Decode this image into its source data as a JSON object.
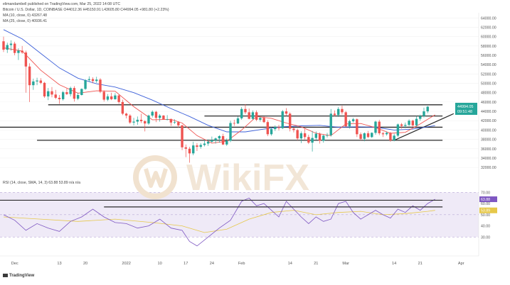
{
  "header": {
    "publisher_line": "elimandambell published on TradingView.com, Mar 25, 2022 14:08 UTC",
    "symbol_line": "Bitcoin / U.S. Dollar, 1D, COINBASE  O44012.36  H45150.91  L43605.80  C44994.05  +981.80 (+2.23%)",
    "ma10_line": "MA (10, close, 0)  43267.48",
    "ma25_line": "MA (25, close, 0)  40936.41",
    "rsi_line": "RSI (14, close, SMA, 14, 3)  63.88  53.89  n/a  n/a"
  },
  "price_badge": {
    "price": "44994.05",
    "countdown": "09:51:48"
  },
  "watermark": "WikiFX",
  "footer": {
    "brand": "TradingView"
  },
  "colors": {
    "up": "#26a69a",
    "down": "#ef5350",
    "ma10": "#ef5350",
    "ma25": "#3b5fd9",
    "rsi": "#7e57c2",
    "rsi_ma": "#e6c84a",
    "levels": "#2b2b2b",
    "band": "#efeaf7"
  },
  "chart_data": [
    {
      "type": "candlestick",
      "title": "Bitcoin / U.S. Dollar, 1D, COINBASE",
      "price_axis_ticks": [
        "64000.00",
        "62000.00",
        "60000.00",
        "58000.00",
        "56000.00",
        "54000.00",
        "52000.00",
        "50000.00",
        "48000.00",
        "46000.00",
        "44000.00",
        "42000.00",
        "40000.00",
        "38000.00",
        "36000.00",
        "34000.00",
        "32000.00"
      ],
      "ylim": [
        30500,
        64500
      ],
      "x_tick_labels": [
        {
          "day": 3,
          "label": "Dec"
        },
        {
          "day": 15,
          "label": "13"
        },
        {
          "day": 22,
          "label": "20"
        },
        {
          "day": 33,
          "label": "2022"
        },
        {
          "day": 42,
          "label": "10"
        },
        {
          "day": 49,
          "label": "17"
        },
        {
          "day": 56,
          "label": "24"
        },
        {
          "day": 64,
          "label": "Feb"
        },
        {
          "day": 77,
          "label": "14"
        },
        {
          "day": 84,
          "label": "21"
        },
        {
          "day": 92,
          "label": "Mar"
        },
        {
          "day": 105,
          "label": "14"
        },
        {
          "day": 112,
          "label": "21"
        },
        {
          "day": 123,
          "label": "Apr"
        }
      ],
      "candles": [
        [
          59000,
          60000,
          56700,
          57200
        ],
        [
          57200,
          58700,
          56500,
          58200
        ],
        [
          58200,
          59200,
          57000,
          58500
        ],
        [
          58500,
          58900,
          56000,
          56500
        ],
        [
          56500,
          57500,
          55000,
          57000
        ],
        [
          57000,
          58000,
          56300,
          56600
        ],
        [
          56600,
          57000,
          48000,
          53600
        ],
        [
          53600,
          54300,
          46000,
          49600
        ],
        [
          49600,
          51000,
          48600,
          50400
        ],
        [
          50400,
          51200,
          49600,
          50600
        ],
        [
          50600,
          51100,
          49800,
          50100
        ],
        [
          50100,
          50300,
          46900,
          47200
        ],
        [
          47200,
          49000,
          46400,
          48300
        ],
        [
          48300,
          49200,
          47000,
          47600
        ],
        [
          47600,
          48600,
          46600,
          46900
        ],
        [
          46900,
          47500,
          45600,
          46600
        ],
        [
          46600,
          48400,
          46300,
          48100
        ],
        [
          48100,
          48900,
          47500,
          47700
        ],
        [
          47700,
          49300,
          47200,
          49000
        ],
        [
          49000,
          49400,
          46100,
          46700
        ],
        [
          46700,
          48000,
          46400,
          47500
        ],
        [
          47500,
          48900,
          47400,
          48800
        ],
        [
          48800,
          50900,
          48600,
          50700
        ],
        [
          50700,
          51500,
          50300,
          50900
        ],
        [
          50900,
          51300,
          50000,
          50500
        ],
        [
          50500,
          51400,
          50100,
          50800
        ],
        [
          50800,
          51100,
          47900,
          48200
        ],
        [
          48200,
          48500,
          46100,
          46500
        ],
        [
          46500,
          47700,
          46200,
          47200
        ],
        [
          47200,
          48000,
          46400,
          46600
        ],
        [
          46600,
          47900,
          46500,
          47400
        ],
        [
          47400,
          47600,
          45600,
          46000
        ],
        [
          46000,
          46500,
          43200,
          43500
        ],
        [
          43500,
          43700,
          42500,
          43100
        ],
        [
          43100,
          43400,
          41300,
          41600
        ],
        [
          41600,
          42600,
          41000,
          41800
        ],
        [
          41800,
          42900,
          41100,
          42200
        ],
        [
          42200,
          43500,
          41500,
          41900
        ],
        [
          41900,
          42100,
          39700,
          41400
        ],
        [
          41400,
          43300,
          41100,
          43100
        ],
        [
          43100,
          44200,
          42700,
          43900
        ],
        [
          43900,
          44100,
          41700,
          42600
        ],
        [
          42600,
          43400,
          41800,
          43100
        ],
        [
          43100,
          43200,
          42200,
          42300
        ],
        [
          42300,
          43200,
          42100,
          42300
        ],
        [
          42300,
          42500,
          40900,
          41600
        ],
        [
          41600,
          42300,
          41300,
          41700
        ],
        [
          41700,
          41900,
          40500,
          41000
        ],
        [
          41000,
          41100,
          35700,
          36300
        ],
        [
          36300,
          36900,
          34200,
          36000
        ],
        [
          36000,
          36400,
          33000,
          35000
        ],
        [
          35000,
          37500,
          34600,
          36700
        ],
        [
          36700,
          37200,
          35500,
          36400
        ],
        [
          36400,
          37200,
          36000,
          36800
        ],
        [
          36800,
          37900,
          36500,
          37100
        ],
        [
          37100,
          38000,
          36600,
          37500
        ],
        [
          37500,
          38600,
          37300,
          37800
        ],
        [
          37800,
          38400,
          37100,
          38200
        ],
        [
          38200,
          38900,
          37300,
          38700
        ],
        [
          38700,
          39200,
          36800,
          36900
        ],
        [
          36900,
          38200,
          36600,
          37700
        ],
        [
          37700,
          42000,
          37400,
          41500
        ],
        [
          41500,
          42200,
          40900,
          41400
        ],
        [
          41400,
          42900,
          41300,
          42500
        ],
        [
          42500,
          44900,
          42200,
          44500
        ],
        [
          44500,
          45500,
          43400,
          43800
        ],
        [
          43800,
          44600,
          42300,
          42400
        ],
        [
          42400,
          44200,
          42200,
          43800
        ],
        [
          43800,
          44200,
          41900,
          42200
        ],
        [
          42200,
          42800,
          41800,
          42600
        ],
        [
          42600,
          42900,
          41500,
          41700
        ],
        [
          41700,
          42100,
          38700,
          39100
        ],
        [
          39100,
          40600,
          38800,
          40200
        ],
        [
          40200,
          41000,
          39800,
          40600
        ],
        [
          40600,
          41100,
          39900,
          40400
        ],
        [
          40400,
          44300,
          40200,
          44000
        ],
        [
          44000,
          44700,
          43000,
          43500
        ],
        [
          43500,
          43800,
          39700,
          40300
        ],
        [
          40300,
          40500,
          39500,
          40000
        ],
        [
          40000,
          40300,
          37800,
          38200
        ],
        [
          38200,
          39700,
          37200,
          39300
        ],
        [
          39300,
          40300,
          38000,
          38500
        ],
        [
          38500,
          39000,
          37000,
          37300
        ],
        [
          37300,
          39800,
          35400,
          38300
        ],
        [
          38300,
          39700,
          37900,
          39200
        ],
        [
          39200,
          39500,
          37100,
          37700
        ],
        [
          37700,
          39000,
          37300,
          38800
        ],
        [
          38800,
          39400,
          38400,
          38900
        ],
        [
          38900,
          44500,
          38600,
          43500
        ],
        [
          43500,
          44200,
          43000,
          43200
        ],
        [
          43200,
          44900,
          42800,
          44500
        ],
        [
          44500,
          45200,
          43300,
          43800
        ],
        [
          43800,
          44100,
          40600,
          40800
        ],
        [
          40800,
          42200,
          40300,
          41900
        ],
        [
          41900,
          42600,
          41600,
          42300
        ],
        [
          42300,
          42500,
          38500,
          39100
        ],
        [
          39100,
          39500,
          37800,
          38100
        ],
        [
          38100,
          39500,
          37600,
          39300
        ],
        [
          39300,
          39800,
          38300,
          38500
        ],
        [
          38500,
          39500,
          38300,
          39400
        ],
        [
          39400,
          42000,
          39000,
          41800
        ],
        [
          41800,
          42200,
          38900,
          39300
        ],
        [
          39300,
          39600,
          38500,
          39100
        ],
        [
          39100,
          39700,
          38800,
          39400
        ],
        [
          39400,
          39600,
          37500,
          37800
        ],
        [
          37800,
          39200,
          37600,
          38800
        ],
        [
          38800,
          41400,
          38500,
          41200
        ],
        [
          41200,
          41500,
          40300,
          40900
        ],
        [
          40900,
          41600,
          40400,
          41100
        ],
        [
          41100,
          42300,
          40800,
          42000
        ],
        [
          42000,
          42200,
          40600,
          41000
        ],
        [
          41000,
          43000,
          40800,
          42400
        ],
        [
          42400,
          43300,
          42000,
          43000
        ],
        [
          43000,
          44800,
          42700,
          44000
        ],
        [
          44000,
          45150,
          43600,
          44994
        ]
      ],
      "ma10": [
        [
          0,
          57600
        ],
        [
          5,
          56900
        ],
        [
          10,
          52800
        ],
        [
          15,
          49700
        ],
        [
          20,
          47900
        ],
        [
          25,
          48400
        ],
        [
          30,
          48300
        ],
        [
          35,
          45000
        ],
        [
          40,
          42200
        ],
        [
          45,
          42300
        ],
        [
          48,
          41500
        ],
        [
          52,
          38800
        ],
        [
          56,
          37200
        ],
        [
          60,
          37600
        ],
        [
          64,
          40000
        ],
        [
          68,
          42900
        ],
        [
          72,
          42500
        ],
        [
          76,
          41500
        ],
        [
          80,
          40700
        ],
        [
          84,
          39300
        ],
        [
          88,
          38800
        ],
        [
          92,
          41300
        ],
        [
          96,
          41400
        ],
        [
          100,
          40500
        ],
        [
          104,
          39300
        ],
        [
          108,
          39500
        ],
        [
          112,
          41300
        ],
        [
          116,
          43267
        ]
      ],
      "ma25": [
        [
          0,
          61500
        ],
        [
          5,
          59500
        ],
        [
          10,
          56400
        ],
        [
          15,
          53300
        ],
        [
          20,
          51100
        ],
        [
          25,
          49900
        ],
        [
          30,
          49200
        ],
        [
          35,
          48000
        ],
        [
          40,
          46400
        ],
        [
          45,
          44600
        ],
        [
          50,
          42900
        ],
        [
          55,
          41000
        ],
        [
          60,
          39600
        ],
        [
          65,
          39600
        ],
        [
          70,
          40200
        ],
        [
          75,
          40700
        ],
        [
          80,
          40900
        ],
        [
          85,
          41000
        ],
        [
          90,
          40600
        ],
        [
          95,
          40700
        ],
        [
          100,
          40600
        ],
        [
          105,
          40000
        ],
        [
          110,
          40200
        ],
        [
          116,
          40936
        ]
      ],
      "horizontal_levels": [
        {
          "price": 45400,
          "from_day": 12,
          "to_day": 118
        },
        {
          "price": 43000,
          "from_day": 54,
          "to_day": 118
        },
        {
          "price": 40600,
          "from_day": -2,
          "to_day": 118
        },
        {
          "price": 37800,
          "from_day": 9,
          "to_day": 118
        }
      ],
      "trendline": {
        "from": [
          105,
          37800
        ],
        "to": [
          121,
          43500
        ]
      }
    },
    {
      "type": "line",
      "title": "RSI (14, close, SMA, 14, 3)",
      "ylim": [
        20,
        76
      ],
      "axis_ticks": [
        70,
        60,
        50,
        40,
        30
      ],
      "band": [
        30,
        70
      ],
      "rsi": [
        [
          0,
          50
        ],
        [
          3,
          45
        ],
        [
          6,
          36
        ],
        [
          9,
          42
        ],
        [
          12,
          38
        ],
        [
          15,
          35
        ],
        [
          18,
          44
        ],
        [
          21,
          48
        ],
        [
          24,
          55
        ],
        [
          27,
          48
        ],
        [
          30,
          43
        ],
        [
          33,
          42
        ],
        [
          36,
          38
        ],
        [
          39,
          40
        ],
        [
          42,
          46
        ],
        [
          45,
          38
        ],
        [
          48,
          36
        ],
        [
          50,
          26
        ],
        [
          52,
          22
        ],
        [
          55,
          30
        ],
        [
          58,
          38
        ],
        [
          61,
          45
        ],
        [
          64,
          62
        ],
        [
          66,
          65
        ],
        [
          68,
          58
        ],
        [
          70,
          60
        ],
        [
          72,
          54
        ],
        [
          74,
          48
        ],
        [
          76,
          62
        ],
        [
          78,
          55
        ],
        [
          80,
          48
        ],
        [
          82,
          42
        ],
        [
          84,
          48
        ],
        [
          86,
          44
        ],
        [
          88,
          46
        ],
        [
          90,
          60
        ],
        [
          92,
          62
        ],
        [
          94,
          52
        ],
        [
          96,
          46
        ],
        [
          98,
          50
        ],
        [
          100,
          54
        ],
        [
          102,
          50
        ],
        [
          104,
          47
        ],
        [
          106,
          55
        ],
        [
          108,
          52
        ],
        [
          110,
          58
        ],
        [
          112,
          54
        ],
        [
          114,
          60
        ],
        [
          116,
          63.88
        ]
      ],
      "rsi_ma": [
        [
          0,
          48
        ],
        [
          10,
          46
        ],
        [
          20,
          44
        ],
        [
          30,
          46
        ],
        [
          40,
          43
        ],
        [
          48,
          40
        ],
        [
          54,
          34
        ],
        [
          60,
          37
        ],
        [
          66,
          46
        ],
        [
          72,
          52
        ],
        [
          78,
          54
        ],
        [
          84,
          50
        ],
        [
          90,
          52
        ],
        [
          96,
          53
        ],
        [
          102,
          50
        ],
        [
          108,
          51
        ],
        [
          114,
          53
        ],
        [
          116,
          53.89
        ]
      ],
      "horizontal_levels": [
        {
          "value": 63,
          "from_day": -2,
          "to_day": 118
        },
        {
          "value": 57,
          "from_day": 27,
          "to_day": 118
        }
      ]
    }
  ]
}
